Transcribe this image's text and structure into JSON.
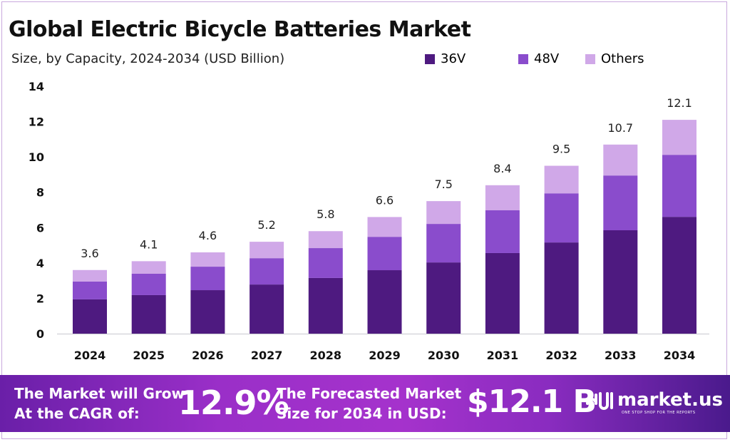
{
  "title": "Global Electric Bicycle Batteries Market",
  "subtitle": "Size, by Capacity, 2024-2034 (USD Billion)",
  "chart_data": {
    "type": "bar",
    "stacked": true,
    "title": "Global Electric Bicycle Batteries Market",
    "subtitle": "Size, by Capacity, 2024-2034 (USD Billion)",
    "categories": [
      "2024",
      "2025",
      "2026",
      "2027",
      "2028",
      "2029",
      "2030",
      "2031",
      "2032",
      "2033",
      "2034"
    ],
    "series": [
      {
        "name": "36V",
        "color": "#4e1a80",
        "values": [
          1.94,
          2.18,
          2.46,
          2.78,
          3.15,
          3.59,
          4.03,
          4.56,
          5.16,
          5.85,
          6.61
        ]
      },
      {
        "name": "48V",
        "color": "#8a4ccc",
        "values": [
          1.01,
          1.21,
          1.33,
          1.49,
          1.69,
          1.89,
          2.18,
          2.42,
          2.78,
          3.1,
          3.51
        ]
      },
      {
        "name": "Others",
        "color": "#d0a8e8",
        "values": [
          0.65,
          0.71,
          0.81,
          0.93,
          0.96,
          1.12,
          1.29,
          1.42,
          1.56,
          1.75,
          1.98
        ]
      }
    ],
    "totals": [
      "3.6",
      "4.1",
      "4.6",
      "5.2",
      "5.8",
      "6.6",
      "7.5",
      "8.4",
      "9.5",
      "10.7",
      "12.1"
    ],
    "ylim": [
      0,
      14
    ],
    "yticks": [
      "0",
      "2",
      "4",
      "6",
      "8",
      "10",
      "12",
      "14"
    ],
    "grid": false,
    "legend": "top-right"
  },
  "footer": {
    "cagr_label_1": "The Market will Grow",
    "cagr_label_2": "At the CAGR of:",
    "cagr_value": "12.9%",
    "forecast_label_1": "The Forecasted Market",
    "forecast_label_2": "Size for 2034 in USD:",
    "forecast_value": "$12.1 B",
    "logo_text": "market.us",
    "logo_tagline": "ONE STOP SHOP FOR THE REPORTS"
  }
}
